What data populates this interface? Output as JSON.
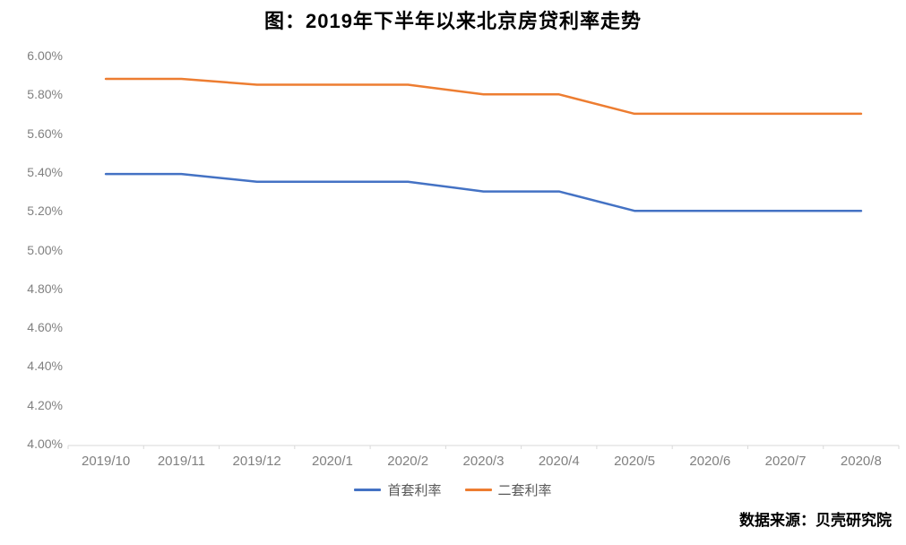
{
  "chart_data": {
    "type": "line",
    "title": "图：2019年下半年以来北京房贷利率走势",
    "categories": [
      "2019/10",
      "2019/11",
      "2019/12",
      "2020/1",
      "2020/2",
      "2020/3",
      "2020/4",
      "2020/5",
      "2020/6",
      "2020/7",
      "2020/8"
    ],
    "series": [
      {
        "name": "首套利率",
        "color": "#4472C4",
        "values": [
          5.39,
          5.39,
          5.35,
          5.35,
          5.35,
          5.3,
          5.3,
          5.2,
          5.2,
          5.2,
          5.2
        ]
      },
      {
        "name": "二套利率",
        "color": "#ED7D31",
        "values": [
          5.88,
          5.88,
          5.85,
          5.85,
          5.85,
          5.8,
          5.8,
          5.7,
          5.7,
          5.7,
          5.7
        ]
      }
    ],
    "ylabel": "",
    "xlabel": "",
    "ylim": [
      4.0,
      6.0
    ],
    "ytick_labels": [
      "6.00%",
      "5.80%",
      "5.60%",
      "5.40%",
      "5.20%",
      "5.00%",
      "4.80%",
      "4.60%",
      "4.40%",
      "4.20%",
      "4.00%"
    ],
    "grid": false,
    "legend_position": "bottom"
  },
  "source_note": "数据来源：贝壳研究院",
  "colors": {
    "axis_line": "#D9D9D9",
    "tick_label": "#808080",
    "legend_text": "#595959",
    "title_text": "#000000"
  }
}
